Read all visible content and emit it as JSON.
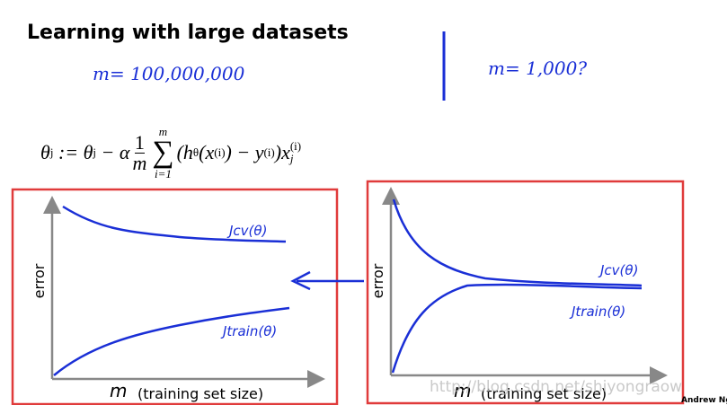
{
  "header": {
    "title": "Learning with large datasets"
  },
  "notes": {
    "big_m": "m= 100,000,000",
    "small_m": "m= 1,000?"
  },
  "formula": [
    "θ",
    "j",
    " := θ",
    "j",
    " − α",
    "1",
    "m",
    "m",
    "∑",
    "i=1",
    "(h",
    "θ",
    "(x",
    "(i)",
    ") − y",
    "(i)",
    ")x",
    "j",
    "(i)"
  ],
  "plots": [
    {
      "y_label": "error",
      "x_var": "m",
      "x_label": "(training set size)",
      "upper_curve": "Jcv(θ)",
      "lower_curve": "Jtrain(θ)"
    },
    {
      "y_label": "error",
      "x_var": "m",
      "x_label": "(training set size)",
      "upper_curve": "Jcv(θ)",
      "lower_curve": "Jtrain(θ)"
    }
  ],
  "watermark": "http://blog.csdn.net/shiyongraow",
  "footer": {
    "author": "Andrew Ng"
  }
}
